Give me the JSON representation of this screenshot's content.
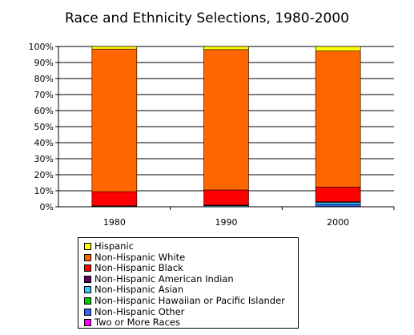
{
  "chart_data": {
    "type": "bar",
    "stacked": true,
    "title": "Race and Ethnicity Selections, 1980-2000",
    "xlabel": "",
    "ylabel": "",
    "ylim": [
      0,
      100
    ],
    "y_tick_labels": [
      "0%",
      "10%",
      "20%",
      "30%",
      "40%",
      "50%",
      "60%",
      "70%",
      "80%",
      "90%",
      "100%"
    ],
    "categories": [
      "1980",
      "1990",
      "2000"
    ],
    "grid": true,
    "legend_position": "bottom",
    "series": [
      {
        "name": "Two or More Races",
        "color": "#ff00ff",
        "values": [
          0,
          0,
          0.2
        ]
      },
      {
        "name": "Non-Hispanic Other",
        "color": "#3366ff",
        "values": [
          0.1,
          0.1,
          1.2
        ]
      },
      {
        "name": "Non-Hispanic Hawaiian or Pacific Islander",
        "color": "#00cc00",
        "values": [
          0,
          0,
          0.1
        ]
      },
      {
        "name": "Non-Hispanic Asian",
        "color": "#33ccff",
        "values": [
          0.3,
          0.6,
          1.3
        ]
      },
      {
        "name": "Non-Hispanic American Indian",
        "color": "#660066",
        "values": [
          0.2,
          0.3,
          0.3
        ]
      },
      {
        "name": "Non-Hispanic Black",
        "color": "#ff0000",
        "values": [
          8.8,
          9.5,
          9.2
        ]
      },
      {
        "name": "Non-Hispanic White",
        "color": "#ff6600",
        "values": [
          89.0,
          87.6,
          84.9
        ]
      },
      {
        "name": "Hispanic",
        "color": "#ffff00",
        "values": [
          1.6,
          1.9,
          2.8
        ]
      }
    ]
  },
  "legend": {
    "items": [
      {
        "label": "Hispanic",
        "color": "#ffff00"
      },
      {
        "label": "Non-Hispanic White",
        "color": "#ff6600"
      },
      {
        "label": "Non-Hispanic Black",
        "color": "#ff0000"
      },
      {
        "label": "Non-Hispanic American Indian",
        "color": "#660066"
      },
      {
        "label": "Non-Hispanic Asian",
        "color": "#33ccff"
      },
      {
        "label": "Non-Hispanic Hawaiian or Pacific Islander",
        "color": "#00cc00"
      },
      {
        "label": "Non-Hispanic Other",
        "color": "#3366ff"
      },
      {
        "label": "Two or More Races",
        "color": "#ff00ff"
      }
    ]
  }
}
